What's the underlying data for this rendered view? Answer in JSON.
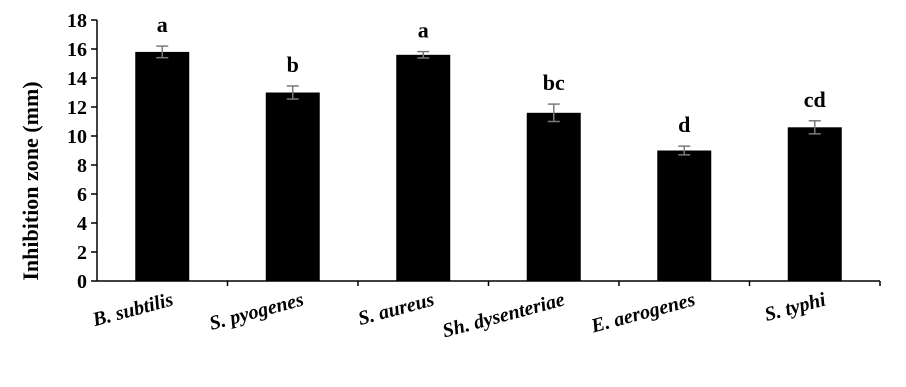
{
  "chart_data": {
    "type": "bar",
    "categories": [
      "B. subtilis",
      "S. pyogenes",
      "S. aureus",
      "Sh. dysenteriae",
      "E. aerogenes",
      "S. typhi"
    ],
    "values": [
      15.8,
      13.0,
      15.6,
      11.6,
      9.0,
      10.6
    ],
    "errors": [
      0.4,
      0.45,
      0.22,
      0.6,
      0.3,
      0.45
    ],
    "significance_labels": [
      "a",
      "b",
      "a",
      "bc",
      "d",
      "cd"
    ],
    "title": "",
    "xlabel": "",
    "ylabel": "Inhibition zone (mm)",
    "ylim": [
      0,
      18
    ],
    "yticks": [
      0,
      2,
      4,
      6,
      8,
      10,
      12,
      14,
      16,
      18
    ],
    "grid": false,
    "legend": "none",
    "bar_color": "#000000"
  }
}
